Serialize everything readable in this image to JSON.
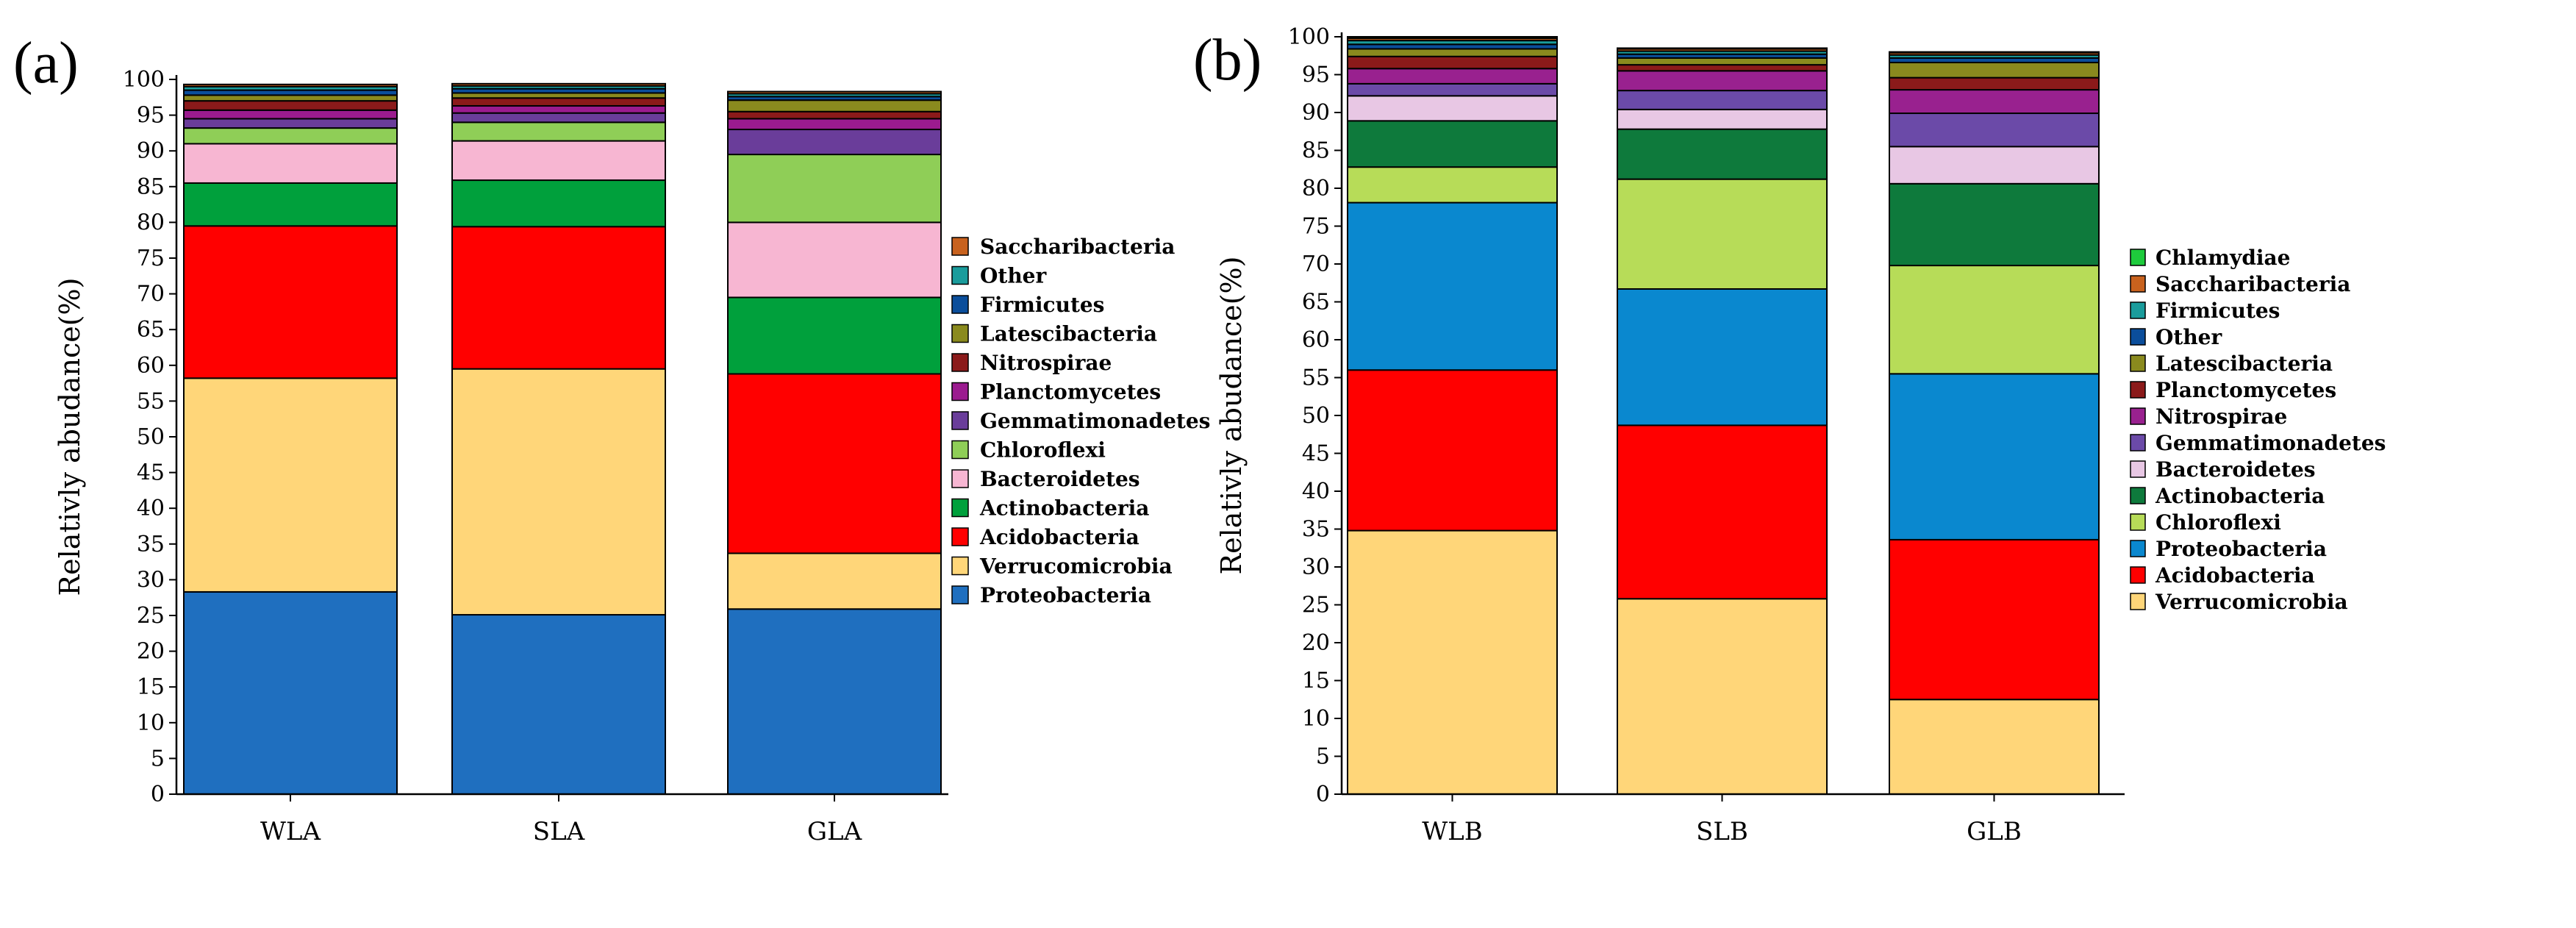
{
  "chart_data": [
    {
      "type": "stacked-bar",
      "panel_label": "(a)",
      "ylabel": "Relativly abudance(%)",
      "xlabel": "",
      "ylim": [
        0,
        100
      ],
      "yticks": [
        0,
        5,
        10,
        15,
        20,
        25,
        30,
        35,
        40,
        45,
        50,
        55,
        60,
        65,
        70,
        75,
        80,
        85,
        90,
        95,
        100
      ],
      "categories": [
        "WLA",
        "SLA",
        "GLA"
      ],
      "series": [
        {
          "name": "Proteobacteria",
          "color": "#1f6fbf",
          "values": [
            28.3,
            25.1,
            25.9
          ]
        },
        {
          "name": "Verrucomicrobia",
          "color": "#ffd679",
          "values": [
            29.9,
            34.4,
            7.8
          ]
        },
        {
          "name": "Acidobacteria",
          "color": "#ff0000",
          "values": [
            21.3,
            19.9,
            25.1
          ]
        },
        {
          "name": "Actinobacteria",
          "color": "#00a03c",
          "values": [
            6.0,
            6.5,
            10.7
          ]
        },
        {
          "name": "Bacteroidetes",
          "color": "#f7b6d2",
          "values": [
            5.5,
            5.5,
            10.5
          ]
        },
        {
          "name": "Chloroflexi",
          "color": "#8fce57",
          "values": [
            2.2,
            2.6,
            9.5
          ]
        },
        {
          "name": "Gemmatimonadetes",
          "color": "#6a3d9a",
          "values": [
            1.3,
            1.3,
            3.5
          ]
        },
        {
          "name": "Planctomycetes",
          "color": "#9b1b8f",
          "values": [
            1.2,
            1.0,
            1.5
          ]
        },
        {
          "name": "Nitrospirae",
          "color": "#8b1a1a",
          "values": [
            1.3,
            1.1,
            1.0
          ]
        },
        {
          "name": "Latescibacteria",
          "color": "#8a8a1e",
          "values": [
            0.8,
            0.7,
            1.6
          ]
        },
        {
          "name": "Firmicutes",
          "color": "#0b4e9b",
          "values": [
            0.7,
            0.6,
            0.5
          ]
        },
        {
          "name": "Other",
          "color": "#1a9c9c",
          "values": [
            0.5,
            0.4,
            0.4
          ]
        },
        {
          "name": "Saccharibacteria",
          "color": "#c8621e",
          "values": [
            0.3,
            0.3,
            0.3
          ]
        }
      ]
    },
    {
      "type": "stacked-bar",
      "panel_label": "(b)",
      "ylabel": "Relativly abudance(%)",
      "xlabel": "",
      "ylim": [
        0,
        100
      ],
      "yticks": [
        0,
        5,
        10,
        15,
        20,
        25,
        30,
        35,
        40,
        45,
        50,
        55,
        60,
        65,
        70,
        75,
        80,
        85,
        90,
        95,
        100
      ],
      "categories": [
        "WLB",
        "SLB",
        "GLB"
      ],
      "series": [
        {
          "name": "Verrucomicrobia",
          "color": "#ffd679",
          "values": [
            34.8,
            25.8,
            12.5
          ]
        },
        {
          "name": "Acidobacteria",
          "color": "#ff0000",
          "values": [
            21.2,
            22.9,
            21.1
          ]
        },
        {
          "name": "Proteobacteria",
          "color": "#0a88cf",
          "values": [
            22.1,
            18.0,
            21.9
          ]
        },
        {
          "name": "Chloroflexi",
          "color": "#b7dc58",
          "values": [
            4.7,
            14.5,
            14.3
          ]
        },
        {
          "name": "Actinobacteria",
          "color": "#0e7a3c",
          "values": [
            6.1,
            6.6,
            10.8
          ]
        },
        {
          "name": "Bacteroidetes",
          "color": "#e8c7e4",
          "values": [
            3.3,
            2.6,
            4.9
          ]
        },
        {
          "name": "Gemmatimonadetes",
          "color": "#6b4aa8",
          "values": [
            1.6,
            2.5,
            4.4
          ]
        },
        {
          "name": "Nitrospirae",
          "color": "#99218f",
          "values": [
            2.0,
            2.6,
            3.1
          ]
        },
        {
          "name": "Planctomycetes",
          "color": "#8b1a1a",
          "values": [
            1.6,
            0.8,
            1.6
          ]
        },
        {
          "name": "Latescibacteria",
          "color": "#8a8a1e",
          "values": [
            1.0,
            0.9,
            2.0
          ]
        },
        {
          "name": "Other",
          "color": "#0b4e9b",
          "values": [
            0.6,
            0.5,
            0.6
          ]
        },
        {
          "name": "Firmicutes",
          "color": "#1a9c9c",
          "values": [
            0.5,
            0.4,
            0.4
          ]
        },
        {
          "name": "Saccharibacteria",
          "color": "#c8621e",
          "values": [
            0.3,
            0.3,
            0.3
          ]
        },
        {
          "name": "Chlamydiae",
          "color": "#1ecb3c",
          "values": [
            0.2,
            0.1,
            0.1
          ]
        }
      ]
    }
  ]
}
